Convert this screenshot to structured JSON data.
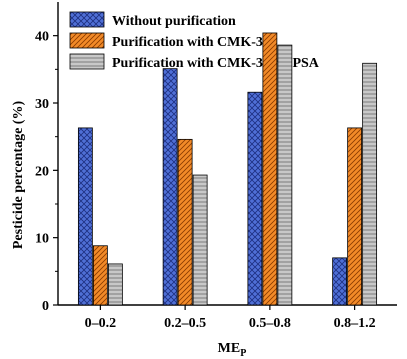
{
  "chart_data": {
    "type": "bar",
    "title": "",
    "xlabel": "ME",
    "xlabel_sub": "P",
    "ylabel": "Pesticide percentage (%)",
    "ylim": [
      0,
      45
    ],
    "yticks": [
      "0",
      "10",
      "20",
      "30",
      "40"
    ],
    "grid": false,
    "legend_position": "top-left",
    "categories": [
      "0–0.2",
      "0.2–0.5",
      "0.5–0.8",
      "0.8–1.2"
    ],
    "series": [
      {
        "name": "Without purification",
        "values": [
          26.3,
          35.1,
          31.6,
          7.0
        ],
        "color": "#4f6fd6",
        "pattern": "crosshatch"
      },
      {
        "name": "Purification with CMK-3",
        "values": [
          8.8,
          24.6,
          40.4,
          26.3
        ],
        "color": "#f28a28",
        "pattern": "diagonal"
      },
      {
        "name": "Purification with CMK-3 and PSA",
        "values": [
          6.1,
          19.3,
          38.6,
          35.9
        ],
        "color": "#c0c0c0",
        "pattern": "horizontal"
      }
    ]
  }
}
